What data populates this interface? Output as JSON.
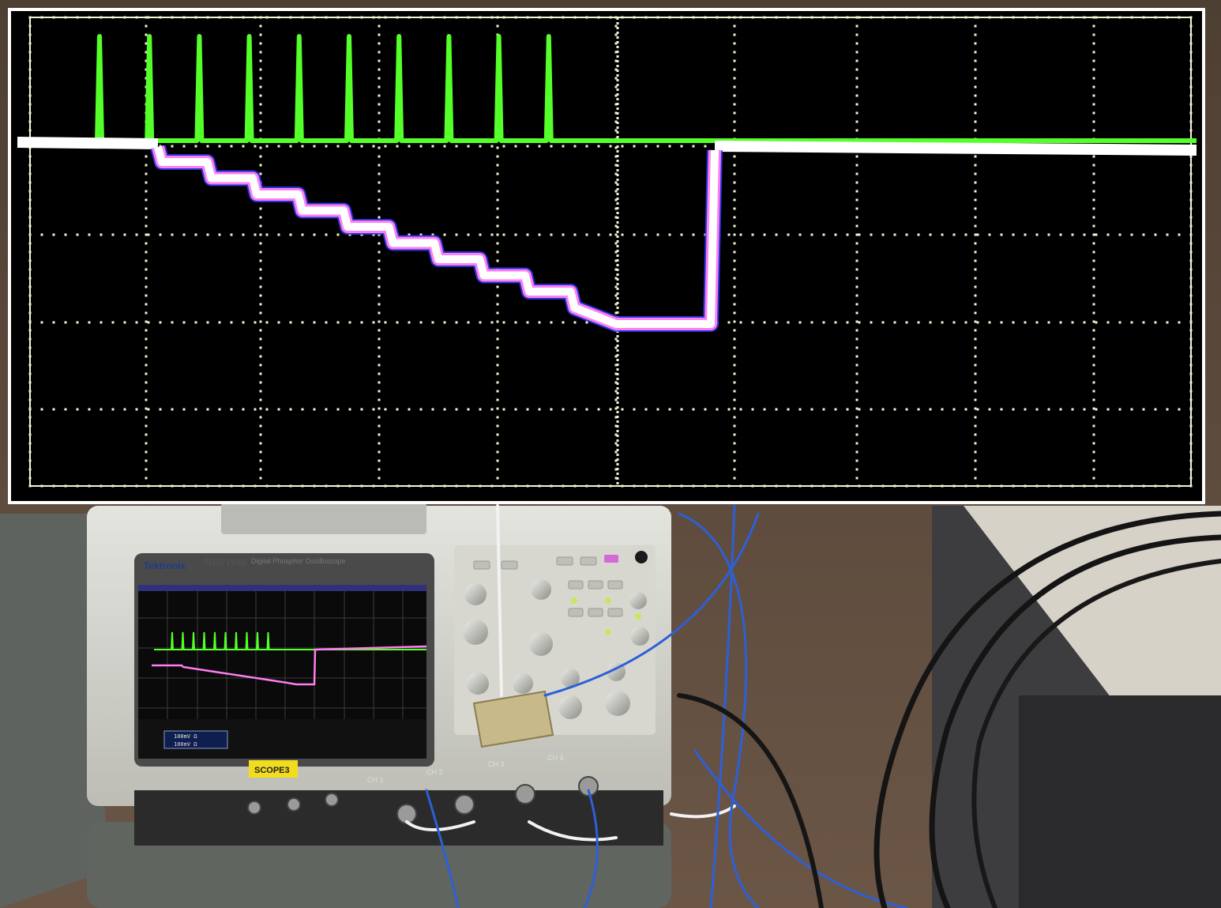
{
  "scope": {
    "brand": "Tektronix",
    "model": "TDS7154B",
    "subtitle": "Digital Phosphor Oscilloscope",
    "asset_tag": "SCOPE3",
    "channel_labels": [
      "CH 1",
      "CH 2",
      "CH 3",
      "CH 4"
    ],
    "readout_line1": "100mV Ω",
    "readout_line2": "100mV Ω"
  },
  "waveform": {
    "pulse_count": 10,
    "ramp_steps": 10,
    "colors": {
      "screen_bg": "#000000",
      "grid": "#f4f4d8",
      "pulse_trace": "#55ff2a",
      "ramp_trace": "#ff7ef0",
      "ramp_fringe": "#2d3cff"
    }
  }
}
